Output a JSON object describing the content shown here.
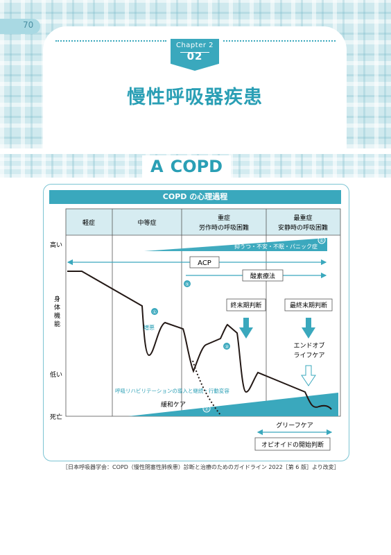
{
  "page_number": "70",
  "chapter": {
    "label": "Chapter 2",
    "number": "02",
    "title": "慢性呼吸器疾患"
  },
  "section": {
    "letter": "A",
    "title": "COPD"
  },
  "figure": {
    "title": "COPD の心理過程",
    "stages": [
      "軽症",
      "中等症",
      "重症",
      "労作時の呼吸困難",
      "最重症",
      "安静時の呼吸困難"
    ],
    "y_axis": {
      "high": "高い",
      "label": "身体機能",
      "low": "低い",
      "death": "死亡"
    },
    "markers": [
      "①",
      "②",
      "③",
      "④",
      "⑤"
    ],
    "anxiety_label": "抑うつ・不安・不眠・パニック症",
    "acp_label": "ACP",
    "oxygen_label": "酸素療法",
    "terminal_judgment": "終末期判断",
    "final_terminal_judgment": "最終末期判断",
    "end_of_life_care": [
      "エンドオブ",
      "ライフケア"
    ],
    "exacerbation_label": "増悪",
    "rehab_label": "呼吸リハビリテーションの導入と継続・行動変容",
    "palliative_label": "緩和ケア",
    "grief_care_label": "グリーフケア",
    "opioid_label": "オピオイドの開始判断",
    "colors": {
      "accent": "#3aa8bd",
      "light": "#cfe9ee",
      "line": "#231815"
    }
  },
  "caption": "［日本呼吸器学会：COPD（慢性閉塞性肺疾患）診断と治療のためのガイドライン 2022［第 6 版］より改変］"
}
